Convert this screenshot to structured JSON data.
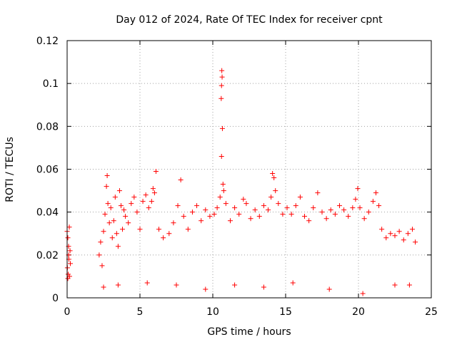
{
  "chart_data": {
    "type": "scatter",
    "title": "Day 012 of 2024, Rate Of TEC Index for receiver cpnt",
    "xlabel": "GPS time / hours",
    "ylabel": "ROTI / TECUs",
    "xlim": [
      0,
      25
    ],
    "ylim": [
      0,
      0.12
    ],
    "xticks": [
      0,
      5,
      10,
      15,
      20,
      25
    ],
    "xtick_labels": [
      "0",
      "5",
      "10",
      "15",
      "20",
      "25"
    ],
    "yticks": [
      0,
      0.02,
      0.04,
      0.06,
      0.08,
      0.1,
      0.12
    ],
    "ytick_labels": [
      "0",
      "0.02",
      "0.04",
      "0.06",
      "0.08",
      "0.1",
      "0.12"
    ],
    "grid": true,
    "marker": "plus",
    "marker_color": "#ff0000",
    "series": [
      {
        "name": "ROTI",
        "points": [
          [
            0.0,
            0.031
          ],
          [
            0.02,
            0.014
          ],
          [
            0.05,
            0.028
          ],
          [
            0.07,
            0.011
          ],
          [
            0.1,
            0.024
          ],
          [
            0.12,
            0.018
          ],
          [
            0.15,
            0.033
          ],
          [
            0.17,
            0.01
          ],
          [
            0.2,
            0.022
          ],
          [
            0.22,
            0.016
          ],
          [
            0.05,
            0.009
          ],
          [
            0.1,
            0.02
          ],
          [
            2.2,
            0.02
          ],
          [
            2.3,
            0.026
          ],
          [
            2.4,
            0.015
          ],
          [
            2.5,
            0.031
          ],
          [
            2.6,
            0.039
          ],
          [
            2.7,
            0.052
          ],
          [
            2.75,
            0.057
          ],
          [
            2.8,
            0.044
          ],
          [
            2.9,
            0.035
          ],
          [
            3.0,
            0.042
          ],
          [
            3.1,
            0.028
          ],
          [
            3.2,
            0.036
          ],
          [
            3.3,
            0.047
          ],
          [
            3.4,
            0.03
          ],
          [
            3.5,
            0.024
          ],
          [
            3.6,
            0.05
          ],
          [
            3.7,
            0.043
          ],
          [
            3.8,
            0.032
          ],
          [
            3.9,
            0.041
          ],
          [
            4.0,
            0.038
          ],
          [
            4.2,
            0.035
          ],
          [
            4.4,
            0.044
          ],
          [
            4.6,
            0.047
          ],
          [
            4.8,
            0.04
          ],
          [
            5.0,
            0.032
          ],
          [
            5.2,
            0.045
          ],
          [
            5.4,
            0.048
          ],
          [
            5.6,
            0.042
          ],
          [
            5.8,
            0.045
          ],
          [
            5.9,
            0.051
          ],
          [
            6.0,
            0.049
          ],
          [
            6.1,
            0.059
          ],
          [
            6.3,
            0.032
          ],
          [
            6.6,
            0.028
          ],
          [
            7.0,
            0.03
          ],
          [
            7.3,
            0.035
          ],
          [
            7.6,
            0.043
          ],
          [
            7.8,
            0.055
          ],
          [
            8.0,
            0.038
          ],
          [
            8.3,
            0.032
          ],
          [
            8.6,
            0.04
          ],
          [
            8.9,
            0.043
          ],
          [
            9.2,
            0.036
          ],
          [
            9.5,
            0.041
          ],
          [
            9.8,
            0.038
          ],
          [
            10.1,
            0.039
          ],
          [
            10.3,
            0.042
          ],
          [
            10.5,
            0.047
          ],
          [
            10.6,
            0.099
          ],
          [
            10.62,
            0.106
          ],
          [
            10.64,
            0.103
          ],
          [
            10.58,
            0.093
          ],
          [
            10.66,
            0.079
          ],
          [
            10.6,
            0.066
          ],
          [
            10.7,
            0.053
          ],
          [
            10.75,
            0.05
          ],
          [
            10.9,
            0.044
          ],
          [
            11.2,
            0.036
          ],
          [
            11.5,
            0.042
          ],
          [
            11.8,
            0.039
          ],
          [
            12.1,
            0.046
          ],
          [
            12.3,
            0.044
          ],
          [
            12.6,
            0.037
          ],
          [
            12.9,
            0.041
          ],
          [
            13.2,
            0.038
          ],
          [
            13.5,
            0.043
          ],
          [
            13.8,
            0.041
          ],
          [
            14.0,
            0.047
          ],
          [
            14.1,
            0.058
          ],
          [
            14.2,
            0.056
          ],
          [
            14.3,
            0.05
          ],
          [
            14.5,
            0.044
          ],
          [
            14.8,
            0.039
          ],
          [
            15.1,
            0.042
          ],
          [
            15.4,
            0.039
          ],
          [
            15.7,
            0.043
          ],
          [
            16.0,
            0.047
          ],
          [
            16.3,
            0.038
          ],
          [
            16.6,
            0.036
          ],
          [
            16.9,
            0.042
          ],
          [
            17.2,
            0.049
          ],
          [
            17.5,
            0.04
          ],
          [
            17.8,
            0.037
          ],
          [
            18.1,
            0.041
          ],
          [
            18.4,
            0.039
          ],
          [
            18.7,
            0.043
          ],
          [
            19.0,
            0.041
          ],
          [
            19.3,
            0.038
          ],
          [
            19.6,
            0.042
          ],
          [
            19.8,
            0.046
          ],
          [
            19.95,
            0.051
          ],
          [
            20.1,
            0.042
          ],
          [
            20.4,
            0.037
          ],
          [
            20.7,
            0.04
          ],
          [
            21.0,
            0.045
          ],
          [
            21.2,
            0.049
          ],
          [
            21.4,
            0.043
          ],
          [
            21.6,
            0.032
          ],
          [
            21.9,
            0.028
          ],
          [
            22.2,
            0.03
          ],
          [
            22.5,
            0.029
          ],
          [
            22.8,
            0.031
          ],
          [
            23.1,
            0.027
          ],
          [
            23.4,
            0.03
          ],
          [
            23.7,
            0.032
          ],
          [
            23.9,
            0.026
          ],
          [
            2.5,
            0.005
          ],
          [
            3.5,
            0.006
          ],
          [
            5.5,
            0.007
          ],
          [
            7.5,
            0.006
          ],
          [
            9.5,
            0.004
          ],
          [
            11.5,
            0.006
          ],
          [
            13.5,
            0.005
          ],
          [
            15.5,
            0.007
          ],
          [
            18.0,
            0.004
          ],
          [
            20.3,
            0.002
          ],
          [
            22.5,
            0.006
          ],
          [
            23.5,
            0.006
          ]
        ]
      }
    ]
  }
}
